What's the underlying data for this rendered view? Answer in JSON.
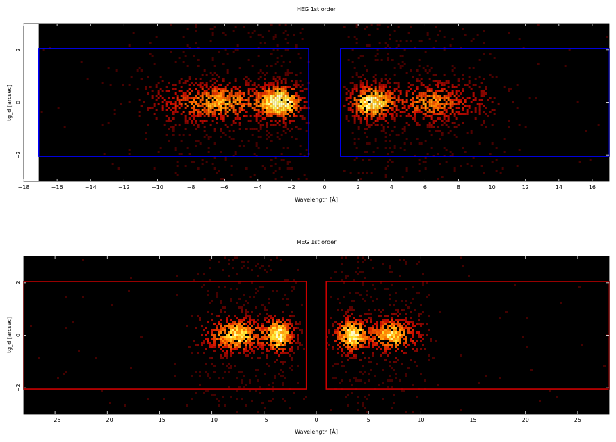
{
  "chart_data": [
    {
      "type": "heatmap",
      "title": "HEG 1st order",
      "xlabel": "Wavelength [Å]",
      "ylabel": "tg_d [arcsec]",
      "xlim": [
        -18,
        17
      ],
      "ylim": [
        -3.0,
        3.0
      ],
      "xticks": [
        -18,
        -16,
        -14,
        -12,
        -10,
        -8,
        -6,
        -4,
        -2,
        0,
        2,
        4,
        6,
        8,
        10,
        12,
        14,
        16
      ],
      "yticks": [
        -2,
        0,
        2
      ],
      "xtick_labels": [
        "−18",
        "−16",
        "−14",
        "−12",
        "−10",
        "−8",
        "−6",
        "−4",
        "−2",
        "0",
        "2",
        "4",
        "6",
        "8",
        "10",
        "12",
        "14",
        "16"
      ],
      "ytick_labels": [
        "−2",
        "0",
        "2"
      ],
      "data_xrange": [
        -17.1,
        17
      ],
      "grid": false,
      "colormap": "heat",
      "regions": [
        {
          "x": [
            -17.1,
            -0.95
          ],
          "y": [
            -2.05,
            2.05
          ],
          "color": "#0000ff"
        },
        {
          "x": [
            0.95,
            17.0
          ],
          "y": [
            -2.05,
            2.05
          ],
          "color": "#0000ff"
        }
      ],
      "clusters": [
        {
          "x": -2.6,
          "y": 0.0,
          "sx": 0.9,
          "sy": 0.45,
          "w": 1.0
        },
        {
          "x": -6.1,
          "y": 0.0,
          "sx": 1.6,
          "sy": 0.5,
          "w": 0.7
        },
        {
          "x": -9.0,
          "y": 0.0,
          "sx": 1.4,
          "sy": 0.55,
          "w": 0.25
        },
        {
          "x": 2.8,
          "y": 0.0,
          "sx": 0.9,
          "sy": 0.45,
          "w": 1.0
        },
        {
          "x": 6.3,
          "y": 0.0,
          "sx": 1.3,
          "sy": 0.5,
          "w": 0.65
        },
        {
          "x": 9.0,
          "y": 0.0,
          "sx": 1.2,
          "sy": 0.55,
          "w": 0.2
        }
      ],
      "gap": [
        -0.95,
        0.95
      ]
    },
    {
      "type": "heatmap",
      "title": "MEG 1st order",
      "xlabel": "Wavelength [Å]",
      "ylabel": "tg_d [arcsec]",
      "xlim": [
        -28,
        28
      ],
      "ylim": [
        -3.0,
        3.0
      ],
      "xticks": [
        -25,
        -20,
        -15,
        -10,
        -5,
        0,
        5,
        10,
        15,
        20,
        25
      ],
      "yticks": [
        -2,
        0,
        2
      ],
      "xtick_labels": [
        "−25",
        "−20",
        "−15",
        "−10",
        "−5",
        "0",
        "5",
        "10",
        "15",
        "20",
        "25"
      ],
      "ytick_labels": [
        "−2",
        "0",
        "2"
      ],
      "data_xrange": [
        -28,
        28
      ],
      "grid": false,
      "colormap": "heat",
      "regions": [
        {
          "x": [
            -28,
            -0.95
          ],
          "y": [
            -2.05,
            2.05
          ],
          "color": "#cc0000"
        },
        {
          "x": [
            0.95,
            28
          ],
          "y": [
            -2.05,
            2.05
          ],
          "color": "#cc0000"
        }
      ],
      "clusters": [
        {
          "x": -3.6,
          "y": 0.0,
          "sx": 1.0,
          "sy": 0.45,
          "w": 1.0
        },
        {
          "x": -7.4,
          "y": 0.0,
          "sx": 1.4,
          "sy": 0.45,
          "w": 0.85
        },
        {
          "x": -10.0,
          "y": 0.0,
          "sx": 1.2,
          "sy": 0.5,
          "w": 0.3
        },
        {
          "x": 3.4,
          "y": 0.0,
          "sx": 1.1,
          "sy": 0.45,
          "w": 1.0
        },
        {
          "x": 7.1,
          "y": 0.0,
          "sx": 1.2,
          "sy": 0.45,
          "w": 0.85
        },
        {
          "x": 9.5,
          "y": 0.0,
          "sx": 1.0,
          "sy": 0.5,
          "w": 0.25
        }
      ],
      "gap": [
        -0.95,
        0.95
      ]
    }
  ]
}
